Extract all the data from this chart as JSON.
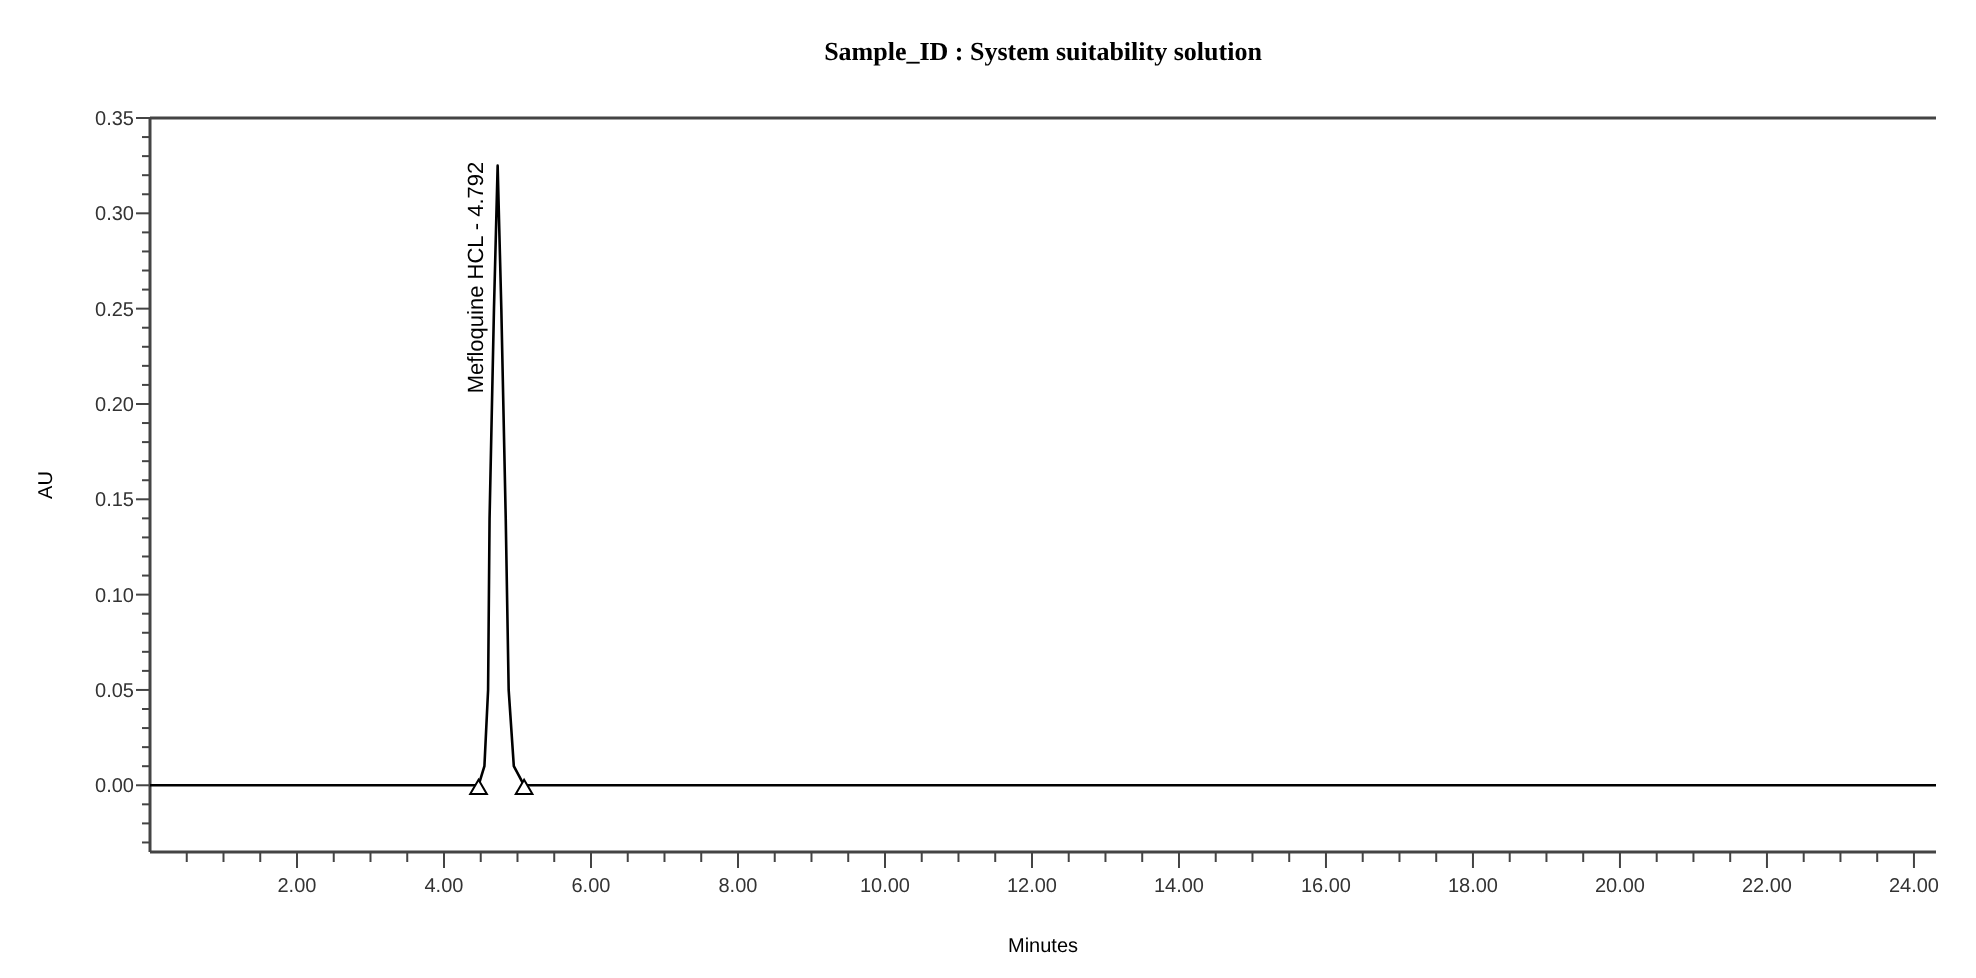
{
  "chart_data": {
    "type": "line",
    "title": "Sample_ID : System suitability solution",
    "xlabel": "Minutes",
    "ylabel": "AU",
    "xlim": [
      0,
      24.3
    ],
    "ylim": [
      -0.035,
      0.35
    ],
    "xticks": [
      {
        "value": 0.5,
        "label": null
      },
      {
        "value": 1,
        "label": null
      },
      {
        "value": 1.5,
        "label": null
      },
      {
        "value": 2,
        "label": "2.00"
      },
      {
        "value": 2.5,
        "label": null
      },
      {
        "value": 3,
        "label": null
      },
      {
        "value": 3.5,
        "label": null
      },
      {
        "value": 4,
        "label": "4.00"
      },
      {
        "value": 4.5,
        "label": null
      },
      {
        "value": 5,
        "label": null
      },
      {
        "value": 5.5,
        "label": null
      },
      {
        "value": 6,
        "label": "6.00"
      },
      {
        "value": 6.5,
        "label": null
      },
      {
        "value": 7,
        "label": null
      },
      {
        "value": 7.5,
        "label": null
      },
      {
        "value": 8,
        "label": "8.00"
      },
      {
        "value": 8.5,
        "label": null
      },
      {
        "value": 9,
        "label": null
      },
      {
        "value": 9.5,
        "label": null
      },
      {
        "value": 10,
        "label": "10.00"
      },
      {
        "value": 10.5,
        "label": null
      },
      {
        "value": 11,
        "label": null
      },
      {
        "value": 11.5,
        "label": null
      },
      {
        "value": 12,
        "label": "12.00"
      },
      {
        "value": 12.5,
        "label": null
      },
      {
        "value": 13,
        "label": null
      },
      {
        "value": 13.5,
        "label": null
      },
      {
        "value": 14,
        "label": "14.00"
      },
      {
        "value": 14.5,
        "label": null
      },
      {
        "value": 15,
        "label": null
      },
      {
        "value": 15.5,
        "label": null
      },
      {
        "value": 16,
        "label": "16.00"
      },
      {
        "value": 16.5,
        "label": null
      },
      {
        "value": 17,
        "label": null
      },
      {
        "value": 17.5,
        "label": null
      },
      {
        "value": 18,
        "label": "18.00"
      },
      {
        "value": 18.5,
        "label": null
      },
      {
        "value": 19,
        "label": null
      },
      {
        "value": 19.5,
        "label": null
      },
      {
        "value": 20,
        "label": "20.00"
      },
      {
        "value": 20.5,
        "label": null
      },
      {
        "value": 21,
        "label": null
      },
      {
        "value": 21.5,
        "label": null
      },
      {
        "value": 22,
        "label": "22.00"
      },
      {
        "value": 22.5,
        "label": null
      },
      {
        "value": 23,
        "label": null
      },
      {
        "value": 23.5,
        "label": null
      },
      {
        "value": 24,
        "label": "24.00"
      }
    ],
    "yticks": [
      {
        "value": -0.03,
        "label": null
      },
      {
        "value": -0.02,
        "label": null
      },
      {
        "value": -0.01,
        "label": null
      },
      {
        "value": 0,
        "label": "0.00"
      },
      {
        "value": 0.01,
        "label": null
      },
      {
        "value": 0.02,
        "label": null
      },
      {
        "value": 0.03,
        "label": null
      },
      {
        "value": 0.04,
        "label": null
      },
      {
        "value": 0.05,
        "label": "0.05"
      },
      {
        "value": 0.06,
        "label": null
      },
      {
        "value": 0.07,
        "label": null
      },
      {
        "value": 0.08,
        "label": null
      },
      {
        "value": 0.09,
        "label": null
      },
      {
        "value": 0.1,
        "label": "0.10"
      },
      {
        "value": 0.11,
        "label": null
      },
      {
        "value": 0.12,
        "label": null
      },
      {
        "value": 0.13,
        "label": null
      },
      {
        "value": 0.14,
        "label": null
      },
      {
        "value": 0.15,
        "label": "0.15"
      },
      {
        "value": 0.16,
        "label": null
      },
      {
        "value": 0.17,
        "label": null
      },
      {
        "value": 0.18,
        "label": null
      },
      {
        "value": 0.19,
        "label": null
      },
      {
        "value": 0.2,
        "label": "0.20"
      },
      {
        "value": 0.21,
        "label": null
      },
      {
        "value": 0.22,
        "label": null
      },
      {
        "value": 0.23,
        "label": null
      },
      {
        "value": 0.24,
        "label": null
      },
      {
        "value": 0.25,
        "label": "0.25"
      },
      {
        "value": 0.26,
        "label": null
      },
      {
        "value": 0.27,
        "label": null
      },
      {
        "value": 0.28,
        "label": null
      },
      {
        "value": 0.29,
        "label": null
      },
      {
        "value": 0.3,
        "label": "0.30"
      },
      {
        "value": 0.31,
        "label": null
      },
      {
        "value": 0.32,
        "label": null
      },
      {
        "value": 0.33,
        "label": null
      },
      {
        "value": 0.34,
        "label": null
      },
      {
        "value": 0.35,
        "label": "0.35"
      }
    ],
    "series": [
      {
        "color": "#000000",
        "x": [
          0,
          3.2,
          4.47,
          4.55,
          4.6,
          4.62,
          4.68,
          4.73,
          4.78,
          4.84,
          4.88,
          4.95,
          5.09,
          24.3
        ],
        "values": [
          0,
          0,
          0,
          0.01,
          0.05,
          0.14,
          0.25,
          0.325,
          0.25,
          0.14,
          0.05,
          0.01,
          0,
          0
        ]
      },
      {
        "type": "scatter",
        "marker": "triangle",
        "color": "#000000",
        "x": [
          4.47,
          5.09
        ],
        "values": [
          0,
          0
        ]
      }
    ],
    "annotations": [
      {
        "text": "Mefloquine HCL - 4.792",
        "x": 4.73,
        "y": 0.325
      }
    ],
    "grid": false
  }
}
